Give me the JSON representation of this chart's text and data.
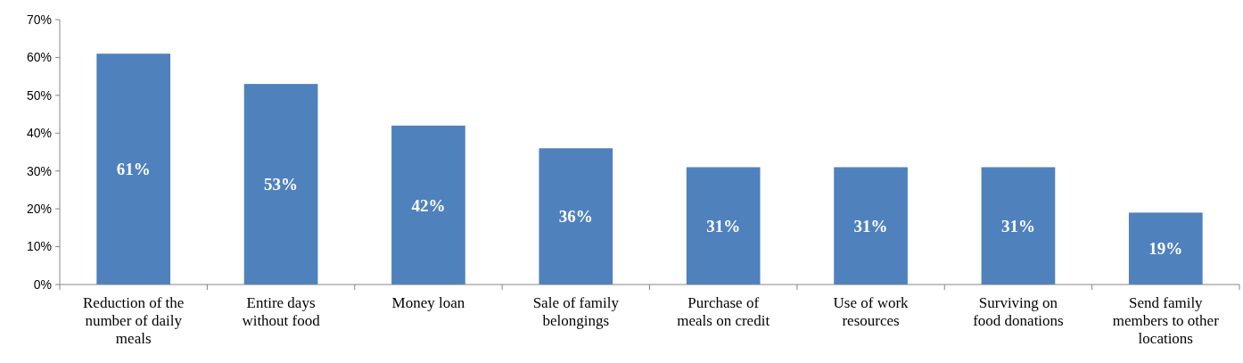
{
  "chart_data": {
    "type": "bar",
    "categories": [
      "Reduction of the number of daily meals",
      "Entire days without food",
      "Money loan",
      "Sale of family belongings",
      "Purchase of meals on credit",
      "Use of work resources",
      "Surviving on food donations",
      "Send family members to other locations"
    ],
    "values": [
      61,
      53,
      42,
      36,
      31,
      31,
      31,
      19
    ],
    "color": "#4f81bd",
    "data_labels": true,
    "value_labels": [
      "61%",
      "53%",
      "42%",
      "36%",
      "31%",
      "31%",
      "31%",
      "19%"
    ],
    "ylim": [
      0,
      70
    ],
    "yticks": [
      {
        "value": 0,
        "label": "0%"
      },
      {
        "value": 10,
        "label": "10%"
      },
      {
        "value": 20,
        "label": "20%"
      },
      {
        "value": 30,
        "label": "30%"
      },
      {
        "value": 40,
        "label": "40%"
      },
      {
        "value": 50,
        "label": "50%"
      },
      {
        "value": 60,
        "label": "60%"
      },
      {
        "value": 70,
        "label": "70%"
      }
    ],
    "grid": false
  }
}
